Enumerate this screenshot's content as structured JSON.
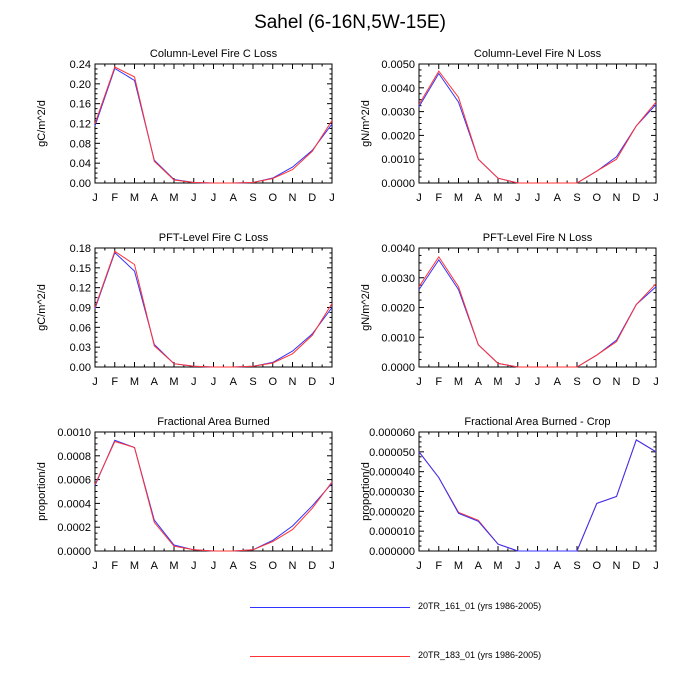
{
  "figure_title": "Sahel (6-16N,5W-15E)",
  "legend": {
    "placement": "bottom-right",
    "entries": [
      {
        "label": "20TR_161_01 (yrs 1986-2005)",
        "color": "#3333ff"
      },
      {
        "label": "20TR_183_01 (yrs 1986-2005)",
        "color": "#ff3333"
      }
    ]
  },
  "chart_data": [
    {
      "type": "line",
      "title": "Column-Level Fire C Loss",
      "ylabel": "gC/m^2/d",
      "xlabel": "",
      "categories": [
        "J",
        "F",
        "M",
        "A",
        "M",
        "J",
        "J",
        "A",
        "S",
        "O",
        "N",
        "D",
        "J"
      ],
      "ylim": [
        0,
        0.24
      ],
      "yticks": [
        "0.00",
        "0.04",
        "0.08",
        "0.12",
        "0.16",
        "0.20",
        "0.24"
      ],
      "grid": false,
      "series": [
        {
          "color": "#3333ff",
          "values": [
            0.115,
            0.231,
            0.207,
            0.046,
            0.007,
            0.001,
            0.0,
            0.0,
            0.001,
            0.01,
            0.032,
            0.066,
            0.119
          ]
        },
        {
          "color": "#ff3333",
          "values": [
            0.12,
            0.234,
            0.214,
            0.044,
            0.006,
            0.001,
            0.0,
            0.0,
            0.001,
            0.009,
            0.027,
            0.064,
            0.126
          ]
        }
      ]
    },
    {
      "type": "line",
      "title": "Column-Level Fire N Loss",
      "ylabel": "gN/m^2/d",
      "xlabel": "",
      "categories": [
        "J",
        "F",
        "M",
        "A",
        "M",
        "J",
        "J",
        "A",
        "S",
        "O",
        "N",
        "D",
        "J"
      ],
      "ylim": [
        0,
        0.005
      ],
      "yticks": [
        "0.0000",
        "0.0010",
        "0.0020",
        "0.0030",
        "0.0040",
        "0.0050"
      ],
      "grid": false,
      "series": [
        {
          "color": "#3333ff",
          "values": [
            0.0032,
            0.0046,
            0.0034,
            0.001,
            0.0002,
            0.0,
            0.0,
            0.0,
            0.0,
            0.0005,
            0.0011,
            0.0024,
            0.0033
          ]
        },
        {
          "color": "#ff3333",
          "values": [
            0.0033,
            0.0047,
            0.0036,
            0.001,
            0.0002,
            0.0,
            0.0,
            0.0,
            0.0,
            0.0005,
            0.001,
            0.0024,
            0.0034
          ]
        }
      ]
    },
    {
      "type": "line",
      "title": "PFT-Level Fire C Loss",
      "ylabel": "gC/m^2/d",
      "xlabel": "",
      "categories": [
        "J",
        "F",
        "M",
        "A",
        "M",
        "J",
        "J",
        "A",
        "S",
        "O",
        "N",
        "D",
        "J"
      ],
      "ylim": [
        0,
        0.18
      ],
      "yticks": [
        "0.00",
        "0.03",
        "0.06",
        "0.09",
        "0.12",
        "0.15",
        "0.18"
      ],
      "grid": false,
      "series": [
        {
          "color": "#3333ff",
          "values": [
            0.088,
            0.173,
            0.145,
            0.034,
            0.005,
            0.001,
            0.0,
            0.0,
            0.001,
            0.007,
            0.024,
            0.05,
            0.09
          ]
        },
        {
          "color": "#ff3333",
          "values": [
            0.09,
            0.175,
            0.155,
            0.032,
            0.005,
            0.001,
            0.0,
            0.0,
            0.001,
            0.006,
            0.02,
            0.048,
            0.096
          ]
        }
      ]
    },
    {
      "type": "line",
      "title": "PFT-Level Fire N Loss",
      "ylabel": "gN/m^2/d",
      "xlabel": "",
      "categories": [
        "J",
        "F",
        "M",
        "A",
        "M",
        "J",
        "J",
        "A",
        "S",
        "O",
        "N",
        "D",
        "J"
      ],
      "ylim": [
        0,
        0.004
      ],
      "yticks": [
        "0.0000",
        "0.0010",
        "0.0020",
        "0.0030",
        "0.0040"
      ],
      "grid": false,
      "series": [
        {
          "color": "#3333ff",
          "values": [
            0.0026,
            0.0036,
            0.0026,
            0.00075,
            0.00012,
            0.0,
            0.0,
            0.0,
            0.0,
            0.0004,
            0.0009,
            0.0021,
            0.0027
          ]
        },
        {
          "color": "#ff3333",
          "values": [
            0.0027,
            0.0037,
            0.0027,
            0.00075,
            0.00012,
            0.0,
            0.0,
            0.0,
            0.0,
            0.0004,
            0.00085,
            0.0021,
            0.0028
          ]
        }
      ]
    },
    {
      "type": "line",
      "title": "Fractional Area Burned",
      "ylabel": "proportion/d",
      "xlabel": "",
      "categories": [
        "J",
        "F",
        "M",
        "A",
        "M",
        "J",
        "J",
        "A",
        "S",
        "O",
        "N",
        "D",
        "J"
      ],
      "ylim": [
        0,
        0.001
      ],
      "yticks": [
        "0.0000",
        "0.0002",
        "0.0004",
        "0.0006",
        "0.0008",
        "0.0010"
      ],
      "grid": false,
      "series": [
        {
          "color": "#3333ff",
          "values": [
            0.00055,
            0.00093,
            0.00087,
            0.00026,
            5e-05,
            1e-05,
            0.0,
            0.0,
            1e-05,
            9e-05,
            0.00021,
            0.00038,
            0.00057
          ]
        },
        {
          "color": "#ff3333",
          "values": [
            0.00056,
            0.00092,
            0.00087,
            0.00024,
            4e-05,
            1e-05,
            0.0,
            0.0,
            1e-05,
            8e-05,
            0.00018,
            0.00036,
            0.00058
          ]
        }
      ]
    },
    {
      "type": "line",
      "title": "Fractional Area Burned - Crop",
      "ylabel": "proportion/d",
      "xlabel": "",
      "categories": [
        "J",
        "F",
        "M",
        "A",
        "M",
        "J",
        "J",
        "A",
        "S",
        "O",
        "N",
        "D",
        "J"
      ],
      "ylim": [
        0,
        6e-05
      ],
      "yticks": [
        "0.000000",
        "0.000010",
        "0.000020",
        "0.000030",
        "0.000040",
        "0.000050",
        "0.000060"
      ],
      "grid": false,
      "series": [
        {
          "color": "#ff3333",
          "values": [
            5e-05,
            3.7e-05,
            1.95e-05,
            1.55e-05,
            3.5e-06,
            0.0,
            0.0,
            0.0,
            0.0,
            2.4e-05,
            2.75e-05,
            5.6e-05,
            5e-05
          ]
        },
        {
          "color": "#3333ff",
          "values": [
            5e-05,
            3.7e-05,
            1.9e-05,
            1.5e-05,
            3.5e-06,
            0.0,
            0.0,
            0.0,
            0.0,
            2.4e-05,
            2.75e-05,
            5.6e-05,
            5e-05
          ]
        }
      ]
    }
  ]
}
